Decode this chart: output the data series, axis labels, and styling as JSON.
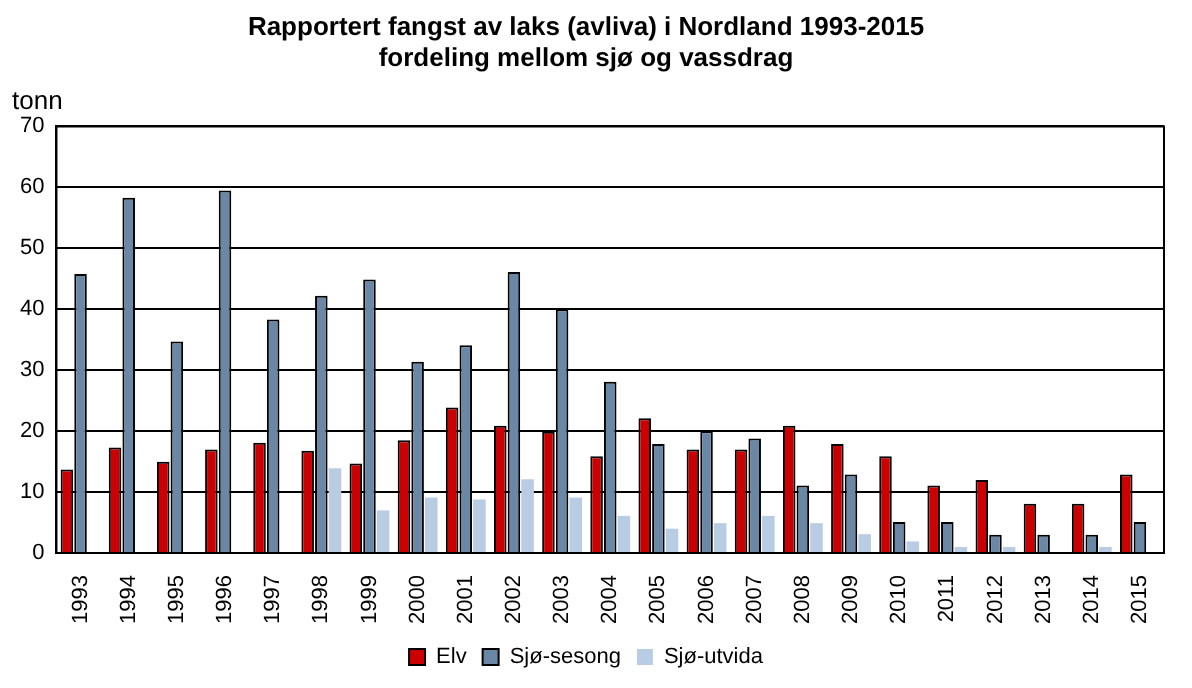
{
  "chart_data": {
    "type": "bar",
    "title": [
      "Rapportert fangst av laks (avliva) i Nordland 1993-2015",
      "fordeling mellom sjø og vassdrag"
    ],
    "ylabel": "tonn",
    "categories": [
      "1993",
      "1994",
      "1995",
      "1996",
      "1997",
      "1998",
      "1999",
      "2000",
      "2001",
      "2002",
      "2003",
      "2004",
      "2005",
      "2006",
      "2007",
      "2008",
      "2009",
      "2010",
      "2011",
      "2012",
      "2013",
      "2014",
      "2015"
    ],
    "series": [
      {
        "name": "Elv",
        "color": "#cc0000",
        "values": [
          13.7,
          17.3,
          15,
          17,
          18.1,
          16.8,
          14.7,
          18.5,
          23.9,
          20.9,
          19.9,
          15.9,
          22.1,
          17,
          17,
          20.9,
          17.9,
          15.9,
          11.1,
          12,
          8.1,
          8.1,
          12.9
        ]
      },
      {
        "name": "Sjø-sesong",
        "color": "#6a87a5",
        "values": [
          45.8,
          58.3,
          34.7,
          59.5,
          38.3,
          42.2,
          44.9,
          31.4,
          34.1,
          46.1,
          40,
          28.1,
          17.9,
          20,
          18.8,
          11.1,
          12.9,
          5.1,
          5.1,
          3,
          3,
          3,
          5.1
        ]
      },
      {
        "name": "Sjø-utvida",
        "color": "#b8cce4",
        "values": [
          null,
          null,
          null,
          null,
          null,
          13.9,
          7,
          9.1,
          8.8,
          12.1,
          9.1,
          6.1,
          4,
          4.9,
          6.1,
          4.9,
          3.1,
          1.9,
          1,
          1,
          null,
          1,
          null
        ]
      }
    ],
    "ylim": [
      0,
      70
    ],
    "yticks": [
      0,
      10,
      20,
      30,
      40,
      50,
      60,
      70
    ],
    "grid": "y",
    "legend": "bottom"
  }
}
